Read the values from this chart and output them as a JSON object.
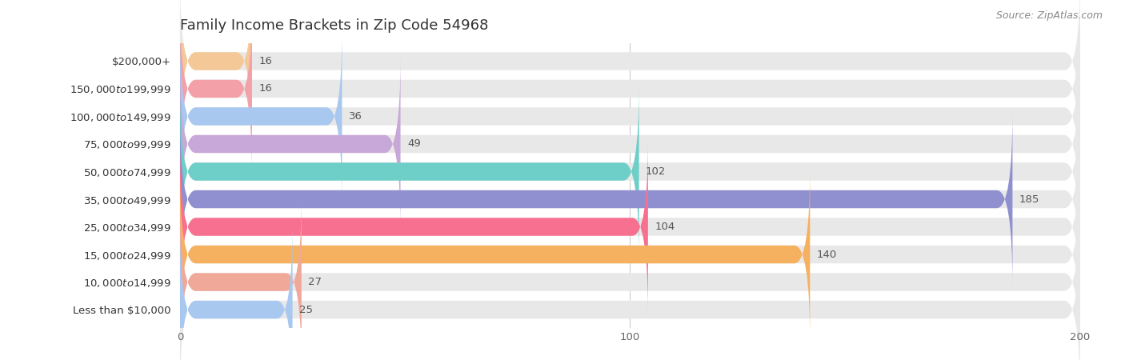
{
  "title": "Family Income Brackets in Zip Code 54968",
  "source": "Source: ZipAtlas.com",
  "categories": [
    "Less than $10,000",
    "$10,000 to $14,999",
    "$15,000 to $24,999",
    "$25,000 to $34,999",
    "$35,000 to $49,999",
    "$50,000 to $74,999",
    "$75,000 to $99,999",
    "$100,000 to $149,999",
    "$150,000 to $199,999",
    "$200,000+"
  ],
  "values": [
    16,
    16,
    36,
    49,
    102,
    185,
    104,
    140,
    27,
    25
  ],
  "bar_colors": [
    "#F5C897",
    "#F4A0A8",
    "#A8C8F0",
    "#C8A8D8",
    "#6ECEC8",
    "#9090D0",
    "#F87090",
    "#F5B060",
    "#F0A898",
    "#A8C8F0"
  ],
  "xlim": [
    0,
    200
  ],
  "xticks": [
    0,
    100,
    200
  ],
  "background_color": "#ffffff",
  "bar_background_color": "#e8e8e8",
  "title_fontsize": 13,
  "label_fontsize": 9.5,
  "value_fontsize": 9.5,
  "source_fontsize": 9,
  "bar_height": 0.65,
  "bar_gap": 1.0
}
